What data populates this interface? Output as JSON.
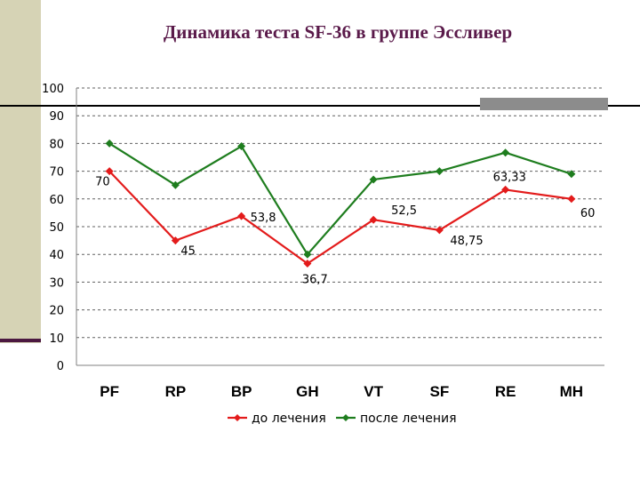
{
  "chart_data": {
    "type": "line",
    "title": "Динамика теста SF-36 в группе Эссливер",
    "categories": [
      "PF",
      "RP",
      "BP",
      "GH",
      "VT",
      "SF",
      "RE",
      "MH"
    ],
    "series": [
      {
        "name": "до лечения",
        "color": "#e31b1b",
        "values": [
          70,
          45,
          53.8,
          36.7,
          52.5,
          48.75,
          63.33,
          60
        ],
        "labels": [
          "70",
          "45",
          "53,8",
          "36,7",
          "52,5",
          "48,75",
          "63,33",
          "60"
        ]
      },
      {
        "name": "после лечения",
        "color": "#1e7d1e",
        "values": [
          80,
          65,
          79,
          40,
          67,
          70,
          76.7,
          69
        ]
      }
    ],
    "ylim": [
      0,
      100
    ],
    "yticks": [
      0,
      10,
      20,
      30,
      40,
      50,
      60,
      70,
      80,
      90,
      100
    ],
    "grid": true,
    "legend_position": "bottom"
  }
}
